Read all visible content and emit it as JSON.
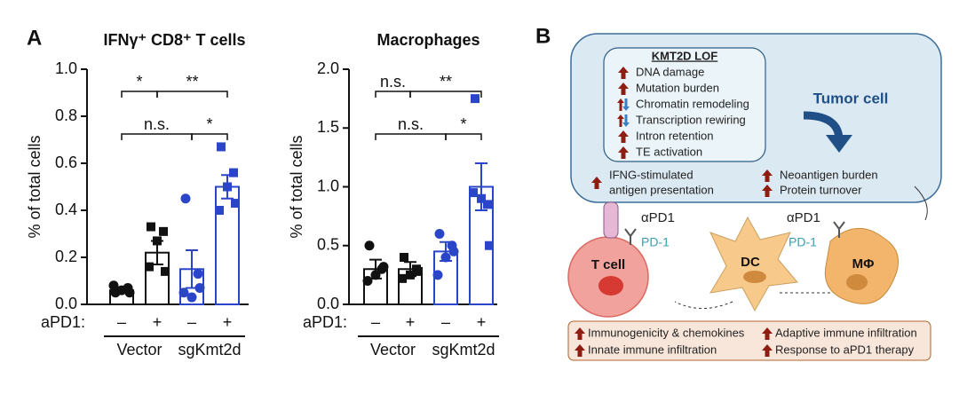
{
  "chart_data": [
    {
      "type": "bar",
      "panel_label": "A",
      "title": "IFNγ⁺ CD8⁺ T cells",
      "y_label": "% of total cells",
      "ylim": [
        0,
        1
      ],
      "yticks": [
        {
          "value": 0,
          "label": "0.0"
        },
        0.2,
        0.4,
        0.6,
        0.8,
        {
          "value": 1,
          "label": "1.0"
        }
      ],
      "x_row_label": "aPD1:",
      "categories": [
        "–",
        "+",
        "–",
        "+"
      ],
      "groups": [
        {
          "label": "Vector",
          "members": [
            0,
            1
          ]
        },
        {
          "label": "sgKmt2d",
          "members": [
            2,
            3
          ]
        }
      ],
      "values": [
        0.06,
        0.22,
        0.15,
        0.5
      ],
      "errors": [
        0.01,
        0.05,
        0.08,
        0.05
      ],
      "points": [
        [
          0.05,
          0.07,
          0.06,
          0.08,
          0.05
        ],
        [
          0.33,
          0.31,
          0.27,
          0.16,
          0.14
        ],
        [
          0.45,
          0.13,
          0.03,
          0.05,
          0.07
        ],
        [
          0.67,
          0.56,
          0.5,
          0.4,
          0.43
        ]
      ],
      "colors": [
        "#111111",
        "#111111",
        "#2b45c8",
        "#2b45c8"
      ],
      "markers": [
        "circle",
        "square",
        "circle",
        "square"
      ],
      "annotations": [
        {
          "text": "*",
          "from": 0,
          "to": 1
        },
        {
          "text": "**",
          "from": 1,
          "to": 3
        },
        {
          "text": "n.s.",
          "from": 0,
          "to": 2
        },
        {
          "text": "*",
          "from": 2,
          "to": 3
        }
      ]
    },
    {
      "type": "bar",
      "title": "Macrophages",
      "y_label": "% of total cells",
      "ylim": [
        0,
        2
      ],
      "yticks": [
        {
          "value": 0,
          "label": "0.0"
        },
        0.5,
        {
          "value": 1,
          "label": "1.0"
        },
        1.5,
        {
          "value": 2,
          "label": "2.0"
        }
      ],
      "x_row_label": "aPD1:",
      "categories": [
        "–",
        "+",
        "–",
        "+"
      ],
      "groups": [
        {
          "label": "Vector",
          "members": [
            0,
            1
          ]
        },
        {
          "label": "sgKmt2d",
          "members": [
            2,
            3
          ]
        }
      ],
      "values": [
        0.3,
        0.3,
        0.45,
        1.0
      ],
      "errors": [
        0.08,
        0.06,
        0.08,
        0.2
      ],
      "points": [
        [
          0.5,
          0.3,
          0.25,
          0.2,
          0.32
        ],
        [
          0.4,
          0.3,
          0.25,
          0.22,
          0.28
        ],
        [
          0.6,
          0.5,
          0.4,
          0.25,
          0.45
        ],
        [
          1.75,
          0.85,
          0.9,
          0.95,
          0.5
        ]
      ],
      "colors": [
        "#111111",
        "#111111",
        "#2b45c8",
        "#2b45c8"
      ],
      "markers": [
        "circle",
        "square",
        "circle",
        "square"
      ],
      "annotations": [
        {
          "text": "n.s.",
          "from": 0,
          "to": 1
        },
        {
          "text": "**",
          "from": 1,
          "to": 3
        },
        {
          "text": "n.s.",
          "from": 0,
          "to": 2
        },
        {
          "text": "*",
          "from": 2,
          "to": 3
        }
      ]
    }
  ],
  "diagram": {
    "panel_label": "B",
    "tumor_cell": "Tumor cell",
    "kmt2d_box": {
      "title": "KMT2D LOF",
      "items": [
        {
          "text": "DNA damage",
          "direction": "up"
        },
        {
          "text": "Mutation burden",
          "direction": "up"
        },
        {
          "text": "Chromatin remodeling",
          "direction": "updown"
        },
        {
          "text": "Transcription rewiring",
          "direction": "updown"
        },
        {
          "text": "Intron retention",
          "direction": "up"
        },
        {
          "text": "TE activation",
          "direction": "up"
        }
      ]
    },
    "tumor_effects": [
      [
        "IFNG-stimulated",
        "antigen presentation"
      ],
      [
        "Neoantigen burden"
      ],
      [
        "Protein turnover"
      ]
    ],
    "antibody_labels": [
      "αPD1",
      "αPD1"
    ],
    "receptor_labels": [
      "PD-1",
      "PD-1"
    ],
    "cells": [
      "T cell",
      "DC",
      "MΦ"
    ],
    "outcomes": [
      "Immunogenicity & chemokines",
      "Innate immune infiltration",
      "Adaptive immune infiltration",
      "Response to aPD1 therapy"
    ]
  }
}
